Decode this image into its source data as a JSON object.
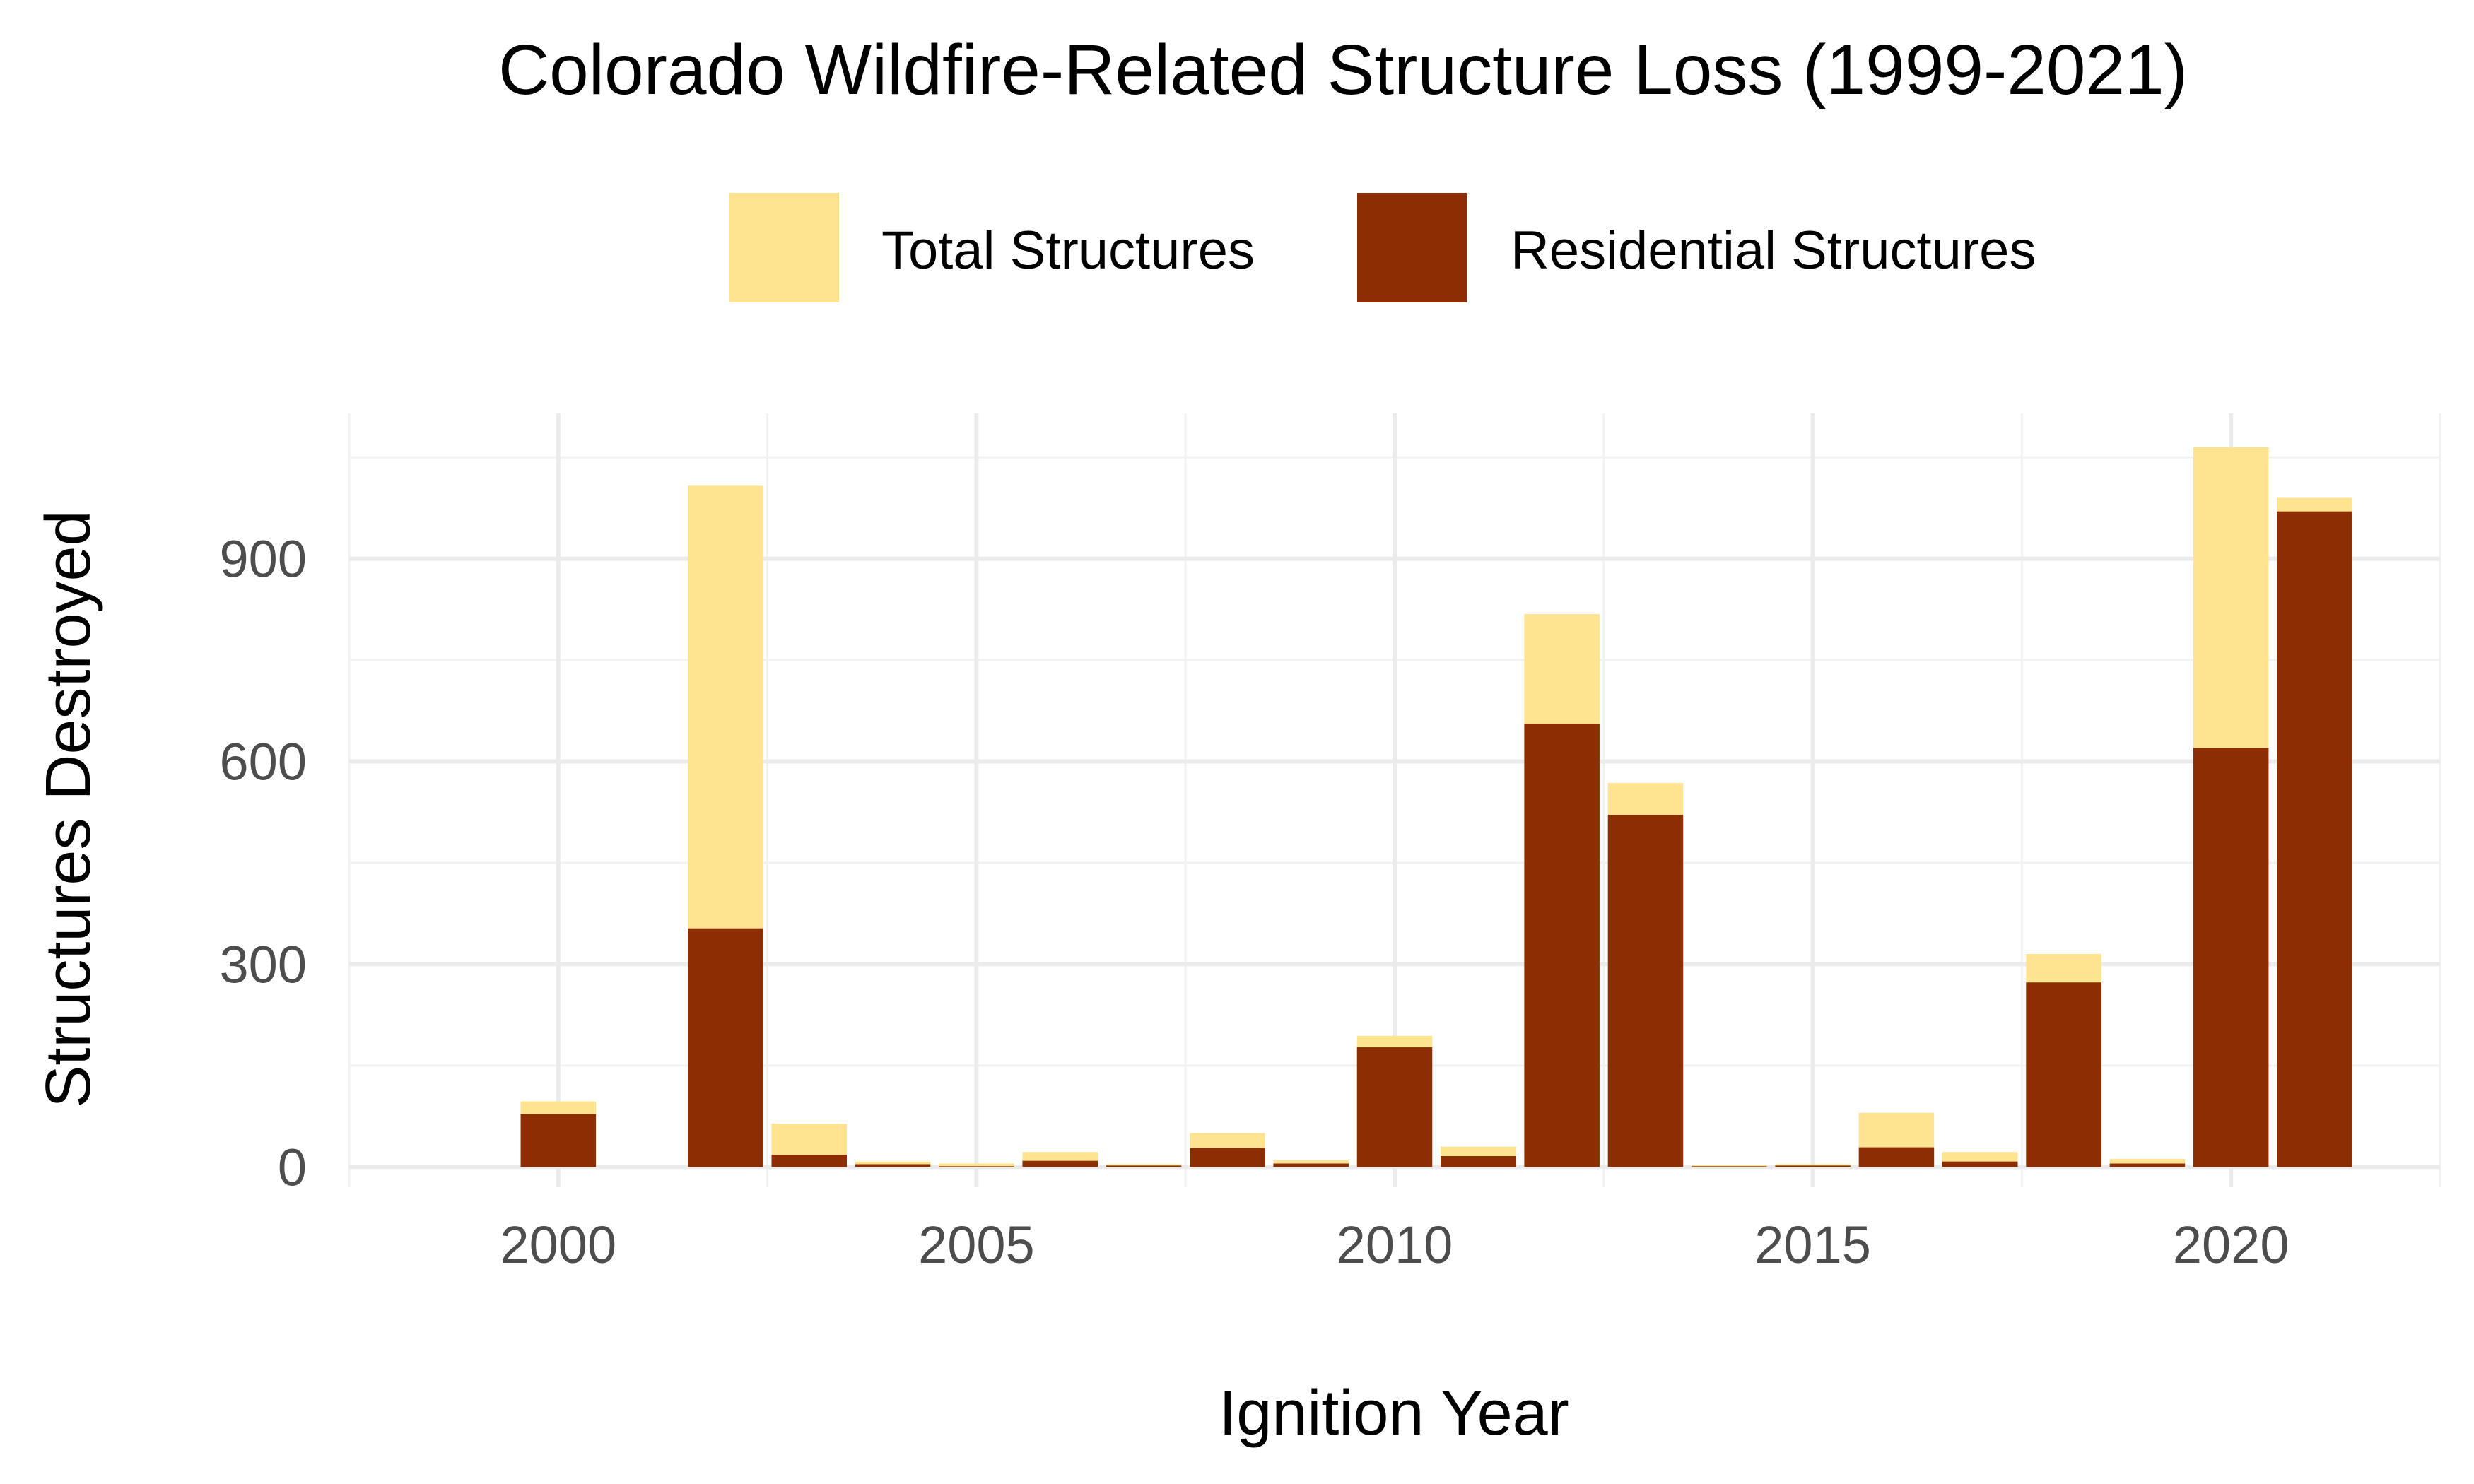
{
  "chart_data": {
    "type": "bar",
    "title": "Colorado Wildfire-Related Structure Loss (1999-2021)",
    "xlabel": "Ignition Year",
    "ylabel": "Structures Destroyed",
    "x": [
      1999,
      2000,
      2001,
      2002,
      2003,
      2004,
      2005,
      2006,
      2007,
      2008,
      2009,
      2010,
      2011,
      2012,
      2013,
      2014,
      2015,
      2016,
      2017,
      2018,
      2019,
      2020,
      2021
    ],
    "xlim": [
      1997.5,
      2022.5
    ],
    "ylim": [
      -30,
      1115
    ],
    "x_ticks": [
      2000,
      2005,
      2010,
      2015,
      2020
    ],
    "x_tick_labels": [
      "2000",
      "2005",
      "2010",
      "2015",
      "2020"
    ],
    "y_ticks": [
      0,
      300,
      600,
      900
    ],
    "y_tick_labels": [
      "0",
      "300",
      "600",
      "900"
    ],
    "grid": true,
    "legend_position": "top",
    "series": [
      {
        "name": "Total Structures",
        "color": "#FEE391",
        "values": [
          0,
          97,
          0,
          1008,
          64,
          8,
          5,
          22,
          4,
          50,
          10,
          194,
          30,
          818,
          568,
          3,
          4,
          80,
          22,
          315,
          12,
          1065,
          990
        ]
      },
      {
        "name": "Residential Structures",
        "color": "#8C2D04",
        "values": [
          0,
          78,
          0,
          353,
          18,
          4,
          1,
          9,
          2,
          28,
          5,
          177,
          16,
          656,
          521,
          1,
          2,
          29,
          8,
          273,
          5,
          620,
          970
        ]
      }
    ]
  }
}
